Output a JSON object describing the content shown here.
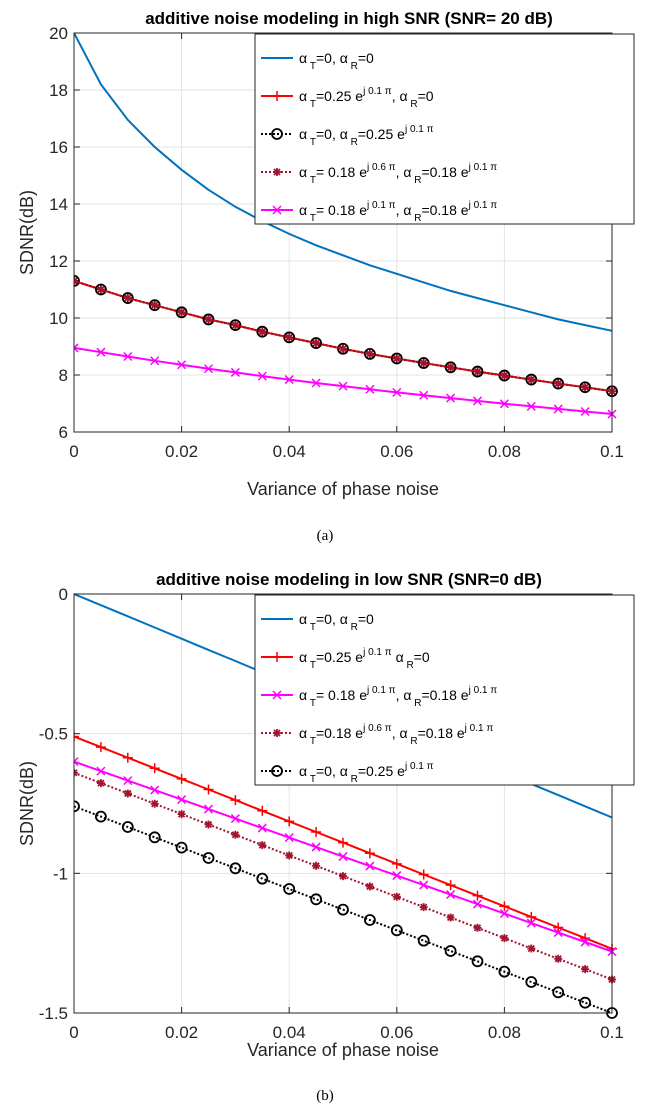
{
  "chart_data": [
    {
      "type": "line",
      "caption": "(a)",
      "title": "additive noise modeling in high SNR (SNR= 20 dB)",
      "xlabel": "Variance of phase noise",
      "ylabel": "SDNR(dB)",
      "xlim": [
        0,
        0.1
      ],
      "ylim": [
        6,
        20
      ],
      "xticks": [
        0,
        0.02,
        0.04,
        0.06,
        0.08,
        0.1
      ],
      "xtick_labels": [
        "0",
        "0.02",
        "0.04",
        "0.06",
        "0.08",
        "0.1"
      ],
      "yticks": [
        6,
        8,
        10,
        12,
        14,
        16,
        18,
        20
      ],
      "ytick_labels": [
        "6",
        "8",
        "10",
        "12",
        "14",
        "16",
        "18",
        "20"
      ],
      "grid": true,
      "legend_position": "top-right",
      "x": [
        0,
        0.005,
        0.01,
        0.015,
        0.02,
        0.025,
        0.03,
        0.035,
        0.04,
        0.045,
        0.05,
        0.055,
        0.06,
        0.065,
        0.07,
        0.075,
        0.08,
        0.085,
        0.09,
        0.095,
        0.1
      ],
      "series": [
        {
          "legend": [
            [
              "α",
              ""
            ],
            [
              " T",
              "sub"
            ],
            [
              "=0, ",
              ""
            ],
            [
              "α",
              ""
            ],
            [
              " R",
              "sub"
            ],
            [
              "=0",
              ""
            ]
          ],
          "color": "#0072BD",
          "marker": "none",
          "dash": "solid",
          "values": [
            20.0,
            18.2,
            16.95,
            16.0,
            15.2,
            14.5,
            13.9,
            13.4,
            12.95,
            12.55,
            12.2,
            11.85,
            11.55,
            11.25,
            10.95,
            10.7,
            10.45,
            10.2,
            9.95,
            9.75,
            9.55
          ]
        },
        {
          "legend": [
            [
              "α",
              ""
            ],
            [
              " T",
              "sub"
            ],
            [
              "=0.25 e",
              ""
            ],
            [
              "j 0.1 π",
              "sup"
            ],
            [
              ", ",
              ""
            ],
            [
              "α",
              ""
            ],
            [
              " R",
              "sub"
            ],
            [
              "=0",
              ""
            ]
          ],
          "color": "#FF0000",
          "marker": "plus",
          "dash": "solid",
          "values": [
            11.3,
            11.0,
            10.7,
            10.45,
            10.2,
            9.95,
            9.75,
            9.52,
            9.32,
            9.12,
            8.92,
            8.74,
            8.58,
            8.42,
            8.27,
            8.12,
            7.98,
            7.84,
            7.7,
            7.57,
            7.43
          ]
        },
        {
          "legend": [
            [
              "α",
              ""
            ],
            [
              " T",
              "sub"
            ],
            [
              "=0, ",
              ""
            ],
            [
              "α",
              ""
            ],
            [
              " R",
              "sub"
            ],
            [
              "=0.25 e",
              ""
            ],
            [
              "j 0.1 π",
              "sup"
            ]
          ],
          "color": "#000000",
          "marker": "circle",
          "dash": "dotted",
          "values": [
            11.3,
            11.0,
            10.7,
            10.45,
            10.2,
            9.95,
            9.75,
            9.52,
            9.32,
            9.12,
            8.92,
            8.74,
            8.58,
            8.42,
            8.27,
            8.12,
            7.98,
            7.84,
            7.7,
            7.57,
            7.43
          ]
        },
        {
          "legend": [
            [
              "α",
              ""
            ],
            [
              " T",
              "sub"
            ],
            [
              "= 0.18 e",
              ""
            ],
            [
              "j 0.6 π",
              "sup"
            ],
            [
              ", ",
              ""
            ],
            [
              "α",
              ""
            ],
            [
              " R",
              "sub"
            ],
            [
              "=0.18 e",
              ""
            ],
            [
              "j 0.1 π",
              "sup"
            ]
          ],
          "color": "#A2142F",
          "marker": "star",
          "dash": "dotted",
          "values": [
            11.3,
            11.0,
            10.7,
            10.45,
            10.2,
            9.95,
            9.75,
            9.52,
            9.32,
            9.12,
            8.92,
            8.74,
            8.58,
            8.42,
            8.27,
            8.12,
            7.98,
            7.84,
            7.7,
            7.57,
            7.43
          ]
        },
        {
          "legend": [
            [
              "α",
              ""
            ],
            [
              " T",
              "sub"
            ],
            [
              "= 0.18 e",
              ""
            ],
            [
              "j 0.1 π",
              "sup"
            ],
            [
              ", ",
              ""
            ],
            [
              "α",
              ""
            ],
            [
              " R",
              "sub"
            ],
            [
              "=0.18 e",
              ""
            ],
            [
              "j 0.1 π",
              "sup"
            ]
          ],
          "color": "#FF00FF",
          "marker": "x",
          "dash": "solid",
          "values": [
            8.95,
            8.8,
            8.65,
            8.5,
            8.36,
            8.22,
            8.09,
            7.96,
            7.84,
            7.72,
            7.61,
            7.5,
            7.39,
            7.29,
            7.19,
            7.09,
            6.99,
            6.9,
            6.81,
            6.72,
            6.63
          ]
        }
      ]
    },
    {
      "type": "line",
      "caption": "(b)",
      "title": "additive noise modeling in low SNR (SNR=0 dB)",
      "xlabel": "Variance of phase noise",
      "ylabel": "SDNR(dB)",
      "xlim": [
        0,
        0.1
      ],
      "ylim": [
        -1.5,
        0
      ],
      "xticks": [
        0,
        0.02,
        0.04,
        0.06,
        0.08,
        0.1
      ],
      "xtick_labels": [
        "0",
        "0.02",
        "0.04",
        "0.06",
        "0.08",
        "0.1"
      ],
      "yticks": [
        -1.5,
        -1,
        -0.5,
        0
      ],
      "ytick_labels": [
        "-1.5",
        "-1",
        "-0.5",
        "0"
      ],
      "grid": true,
      "legend_position": "top-right",
      "x": [
        0,
        0.005,
        0.01,
        0.015,
        0.02,
        0.025,
        0.03,
        0.035,
        0.04,
        0.045,
        0.05,
        0.055,
        0.06,
        0.065,
        0.07,
        0.075,
        0.08,
        0.085,
        0.09,
        0.095,
        0.1
      ],
      "series": [
        {
          "legend": [
            [
              "α",
              ""
            ],
            [
              " T",
              "sub"
            ],
            [
              "=0, ",
              ""
            ],
            [
              "α",
              ""
            ],
            [
              " R",
              "sub"
            ],
            [
              "=0",
              ""
            ]
          ],
          "color": "#0072BD",
          "marker": "none",
          "dash": "solid",
          "values": [
            0.0,
            -0.04,
            -0.08,
            -0.12,
            -0.16,
            -0.2,
            -0.24,
            -0.28,
            -0.32,
            -0.36,
            -0.4,
            -0.44,
            -0.48,
            -0.52,
            -0.56,
            -0.6,
            -0.64,
            -0.68,
            -0.72,
            -0.76,
            -0.8
          ]
        },
        {
          "legend": [
            [
              "α",
              ""
            ],
            [
              " T",
              "sub"
            ],
            [
              "=0.25 e",
              ""
            ],
            [
              "j 0.1 π",
              "sup"
            ],
            [
              "  ",
              ""
            ],
            [
              "α",
              ""
            ],
            [
              " R",
              "sub"
            ],
            [
              "=0",
              ""
            ]
          ],
          "color": "#FF0000",
          "marker": "plus",
          "dash": "solid",
          "values": [
            -0.51,
            -0.548,
            -0.586,
            -0.624,
            -0.662,
            -0.7,
            -0.738,
            -0.776,
            -0.814,
            -0.852,
            -0.89,
            -0.928,
            -0.966,
            -1.004,
            -1.042,
            -1.08,
            -1.118,
            -1.156,
            -1.194,
            -1.232,
            -1.27
          ]
        },
        {
          "legend": [
            [
              "α",
              ""
            ],
            [
              " T",
              "sub"
            ],
            [
              "= 0.18 e",
              ""
            ],
            [
              "j 0.1 π",
              "sup"
            ],
            [
              ", ",
              ""
            ],
            [
              "α",
              ""
            ],
            [
              " R",
              "sub"
            ],
            [
              "=0.18 e",
              ""
            ],
            [
              "j 0.1 π",
              "sup"
            ]
          ],
          "color": "#FF00FF",
          "marker": "x",
          "dash": "solid",
          "values": [
            -0.6,
            -0.634,
            -0.668,
            -0.702,
            -0.736,
            -0.77,
            -0.804,
            -0.838,
            -0.872,
            -0.906,
            -0.94,
            -0.974,
            -1.008,
            -1.042,
            -1.076,
            -1.11,
            -1.144,
            -1.178,
            -1.212,
            -1.246,
            -1.28
          ]
        },
        {
          "legend": [
            [
              "α",
              ""
            ],
            [
              " T",
              "sub"
            ],
            [
              "=0.18 e",
              ""
            ],
            [
              "j 0.6 π",
              "sup"
            ],
            [
              ", ",
              ""
            ],
            [
              "α",
              ""
            ],
            [
              " R",
              "sub"
            ],
            [
              "=0.18 e",
              ""
            ],
            [
              "j 0.1 π",
              "sup"
            ]
          ],
          "color": "#A2142F",
          "marker": "star",
          "dash": "dotted",
          "values": [
            -0.64,
            -0.677,
            -0.714,
            -0.751,
            -0.788,
            -0.825,
            -0.862,
            -0.899,
            -0.936,
            -0.973,
            -1.01,
            -1.047,
            -1.084,
            -1.121,
            -1.158,
            -1.195,
            -1.232,
            -1.269,
            -1.306,
            -1.343,
            -1.38
          ]
        },
        {
          "legend": [
            [
              "α",
              ""
            ],
            [
              " T",
              "sub"
            ],
            [
              "=0, ",
              ""
            ],
            [
              "α",
              ""
            ],
            [
              " R",
              "sub"
            ],
            [
              "=0.25 e",
              ""
            ],
            [
              "j 0.1 π",
              "sup"
            ]
          ],
          "color": "#000000",
          "marker": "circle",
          "dash": "dotted",
          "values": [
            -0.76,
            -0.797,
            -0.834,
            -0.871,
            -0.908,
            -0.945,
            -0.982,
            -1.019,
            -1.056,
            -1.093,
            -1.13,
            -1.167,
            -1.204,
            -1.241,
            -1.278,
            -1.315,
            -1.352,
            -1.389,
            -1.426,
            -1.463,
            -1.5
          ]
        }
      ]
    }
  ]
}
